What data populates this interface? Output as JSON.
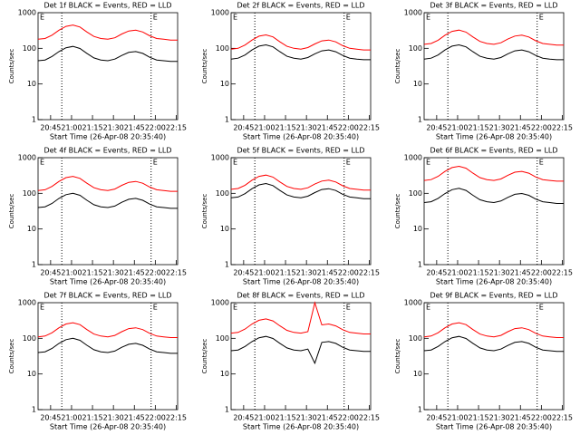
{
  "chart_data": [
    {
      "type": "line",
      "title": "Det 1f BLACK = Events, RED = LLD",
      "xlabel": "Start Time (26-Apr-08 20:35:40)",
      "ylabel": "Counts/sec",
      "log_y": true,
      "annotations": [
        "E",
        "E"
      ],
      "vlines": [
        53,
        117
      ],
      "xlim": [
        36,
        136
      ],
      "ylim": [
        1,
        1000
      ],
      "yticks": [
        1,
        10,
        100,
        1000
      ],
      "xticks": [
        {
          "value": 45,
          "label": "20:45"
        },
        {
          "value": 60,
          "label": "21:00"
        },
        {
          "value": 75,
          "label": "21:15"
        },
        {
          "value": 90,
          "label": "21:30"
        },
        {
          "value": 105,
          "label": "21:45"
        },
        {
          "value": 120,
          "label": "22:00"
        },
        {
          "value": 135,
          "label": "22:15"
        }
      ],
      "x": [
        36,
        41,
        46,
        51,
        56,
        61,
        66,
        71,
        76,
        81,
        86,
        91,
        96,
        101,
        106,
        111,
        116,
        121,
        126,
        131,
        136
      ],
      "series": [
        {
          "color": "#000000",
          "values": [
            45,
            47,
            59,
            81,
            104,
            113,
            99,
            72,
            54,
            47,
            45,
            50,
            63,
            77,
            81,
            72,
            56,
            47,
            45,
            43,
            43
          ]
        },
        {
          "color": "#ff0000",
          "values": [
            180,
            189,
            234,
            324,
            414,
            450,
            396,
            288,
            216,
            189,
            180,
            198,
            252,
            306,
            324,
            288,
            225,
            189,
            180,
            171,
            171
          ]
        }
      ]
    },
    {
      "type": "line",
      "title": "Det 2f BLACK = Events, RED = LLD",
      "xlabel": "Start Time (26-Apr-08 20:35:40)",
      "ylabel": "Counts/sec",
      "log_y": true,
      "annotations": [
        "E",
        "E"
      ],
      "vlines": [
        53,
        117
      ],
      "xlim": [
        36,
        136
      ],
      "ylim": [
        1,
        1000
      ],
      "yticks": [
        1,
        10,
        100,
        1000
      ],
      "xticks": [
        {
          "value": 45,
          "label": "20:45"
        },
        {
          "value": 60,
          "label": "21:00"
        },
        {
          "value": 75,
          "label": "21:15"
        },
        {
          "value": 90,
          "label": "21:30"
        },
        {
          "value": 105,
          "label": "21:45"
        },
        {
          "value": 120,
          "label": "22:00"
        },
        {
          "value": 135,
          "label": "22:15"
        }
      ],
      "x": [
        36,
        41,
        46,
        51,
        56,
        61,
        66,
        71,
        76,
        81,
        86,
        91,
        96,
        101,
        106,
        111,
        116,
        121,
        126,
        131,
        136
      ],
      "series": [
        {
          "color": "#000000",
          "values": [
            50,
            53,
            65,
            90,
            115,
            125,
            110,
            80,
            60,
            53,
            50,
            55,
            70,
            85,
            90,
            80,
            63,
            53,
            50,
            48,
            48
          ]
        },
        {
          "color": "#ff0000",
          "values": [
            95,
            100,
            124,
            171,
            219,
            238,
            209,
            152,
            114,
            100,
            95,
            105,
            133,
            162,
            171,
            152,
            119,
            100,
            95,
            90,
            90
          ]
        }
      ]
    },
    {
      "type": "line",
      "title": "Det 3f BLACK = Events, RED = LLD",
      "xlabel": "Start Time (26-Apr-08 20:35:40)",
      "ylabel": "Counts/sec",
      "log_y": true,
      "annotations": [
        "E",
        "E"
      ],
      "vlines": [
        53,
        117
      ],
      "xlim": [
        36,
        136
      ],
      "ylim": [
        1,
        1000
      ],
      "yticks": [
        1,
        10,
        100,
        1000
      ],
      "xticks": [
        {
          "value": 45,
          "label": "20:45"
        },
        {
          "value": 60,
          "label": "21:00"
        },
        {
          "value": 75,
          "label": "21:15"
        },
        {
          "value": 90,
          "label": "21:30"
        },
        {
          "value": 105,
          "label": "21:45"
        },
        {
          "value": 120,
          "label": "22:00"
        },
        {
          "value": 135,
          "label": "22:15"
        }
      ],
      "x": [
        36,
        41,
        46,
        51,
        56,
        61,
        66,
        71,
        76,
        81,
        86,
        91,
        96,
        101,
        106,
        111,
        116,
        121,
        126,
        131,
        136
      ],
      "series": [
        {
          "color": "#000000",
          "values": [
            50,
            53,
            65,
            90,
            115,
            125,
            110,
            80,
            60,
            53,
            50,
            55,
            70,
            85,
            90,
            80,
            63,
            53,
            50,
            48,
            48
          ]
        },
        {
          "color": "#ff0000",
          "values": [
            130,
            137,
            169,
            234,
            299,
            325,
            286,
            208,
            156,
            137,
            130,
            143,
            182,
            221,
            234,
            208,
            163,
            137,
            130,
            124,
            124
          ]
        }
      ]
    },
    {
      "type": "line",
      "title": "Det 4f BLACK = Events, RED = LLD",
      "xlabel": "Start Time (26-Apr-08 20:35:40)",
      "ylabel": "Counts/sec",
      "log_y": true,
      "annotations": [
        "E",
        "E"
      ],
      "vlines": [
        53,
        117
      ],
      "xlim": [
        36,
        136
      ],
      "ylim": [
        1,
        1000
      ],
      "yticks": [
        1,
        10,
        100,
        1000
      ],
      "xticks": [
        {
          "value": 45,
          "label": "20:45"
        },
        {
          "value": 60,
          "label": "21:00"
        },
        {
          "value": 75,
          "label": "21:15"
        },
        {
          "value": 90,
          "label": "21:30"
        },
        {
          "value": 105,
          "label": "21:45"
        },
        {
          "value": 120,
          "label": "22:00"
        },
        {
          "value": 135,
          "label": "22:15"
        }
      ],
      "x": [
        36,
        41,
        46,
        51,
        56,
        61,
        66,
        71,
        76,
        81,
        86,
        91,
        96,
        101,
        106,
        111,
        116,
        121,
        126,
        131,
        136
      ],
      "series": [
        {
          "color": "#000000",
          "values": [
            40,
            42,
            52,
            72,
            92,
            100,
            88,
            64,
            48,
            42,
            40,
            44,
            56,
            68,
            72,
            64,
            50,
            42,
            40,
            38,
            38
          ]
        },
        {
          "color": "#ff0000",
          "values": [
            120,
            126,
            156,
            216,
            276,
            300,
            264,
            192,
            144,
            126,
            120,
            132,
            168,
            204,
            216,
            192,
            150,
            126,
            120,
            114,
            114
          ]
        }
      ]
    },
    {
      "type": "line",
      "title": "Det 5f BLACK = Events, RED = LLD",
      "xlabel": "Start Time (26-Apr-08 20:35:40)",
      "ylabel": "Counts/sec",
      "log_y": true,
      "annotations": [
        "E",
        "E"
      ],
      "vlines": [
        53,
        117
      ],
      "xlim": [
        36,
        136
      ],
      "ylim": [
        1,
        1000
      ],
      "yticks": [
        1,
        10,
        100,
        1000
      ],
      "xticks": [
        {
          "value": 45,
          "label": "20:45"
        },
        {
          "value": 60,
          "label": "21:00"
        },
        {
          "value": 75,
          "label": "21:15"
        },
        {
          "value": 90,
          "label": "21:30"
        },
        {
          "value": 105,
          "label": "21:45"
        },
        {
          "value": 120,
          "label": "22:00"
        },
        {
          "value": 135,
          "label": "22:15"
        }
      ],
      "x": [
        36,
        41,
        46,
        51,
        56,
        61,
        66,
        71,
        76,
        81,
        86,
        91,
        96,
        101,
        106,
        111,
        116,
        121,
        126,
        131,
        136
      ],
      "series": [
        {
          "color": "#000000",
          "values": [
            75,
            79,
            98,
            135,
            173,
            188,
            165,
            120,
            90,
            79,
            75,
            83,
            105,
            128,
            135,
            120,
            94,
            79,
            75,
            71,
            71
          ]
        },
        {
          "color": "#ff0000",
          "values": [
            130,
            137,
            169,
            234,
            299,
            325,
            286,
            208,
            156,
            137,
            130,
            143,
            182,
            221,
            234,
            208,
            163,
            137,
            130,
            124,
            124
          ]
        }
      ]
    },
    {
      "type": "line",
      "title": "Det 6f BLACK = Events, RED = LLD",
      "xlabel": "Start Time (26-Apr-08 20:35:40)",
      "ylabel": "Counts/sec",
      "log_y": true,
      "annotations": [
        "E",
        "E"
      ],
      "vlines": [
        53,
        117
      ],
      "xlim": [
        36,
        136
      ],
      "ylim": [
        1,
        1000
      ],
      "yticks": [
        1,
        10,
        100,
        1000
      ],
      "xticks": [
        {
          "value": 45,
          "label": "20:45"
        },
        {
          "value": 60,
          "label": "21:00"
        },
        {
          "value": 75,
          "label": "21:15"
        },
        {
          "value": 90,
          "label": "21:30"
        },
        {
          "value": 105,
          "label": "21:45"
        },
        {
          "value": 120,
          "label": "22:00"
        },
        {
          "value": 135,
          "label": "22:15"
        }
      ],
      "x": [
        36,
        41,
        46,
        51,
        56,
        61,
        66,
        71,
        76,
        81,
        86,
        91,
        96,
        101,
        106,
        111,
        116,
        121,
        126,
        131,
        136
      ],
      "series": [
        {
          "color": "#000000",
          "values": [
            55,
            58,
            72,
            99,
            127,
            138,
            121,
            88,
            66,
            58,
            55,
            61,
            77,
            94,
            99,
            88,
            69,
            58,
            55,
            52,
            52
          ]
        },
        {
          "color": "#ff0000",
          "values": [
            230,
            242,
            299,
            414,
            529,
            575,
            506,
            368,
            276,
            242,
            230,
            253,
            322,
            391,
            414,
            368,
            288,
            242,
            230,
            219,
            219
          ]
        }
      ]
    },
    {
      "type": "line",
      "title": "Det 7f BLACK = Events, RED = LLD",
      "xlabel": "Start Time (26-Apr-08 20:35:40)",
      "ylabel": "Counts/sec",
      "log_y": true,
      "annotations": [
        "E",
        "E"
      ],
      "vlines": [
        53,
        117
      ],
      "xlim": [
        36,
        136
      ],
      "ylim": [
        1,
        1000
      ],
      "yticks": [
        1,
        10,
        100,
        1000
      ],
      "xticks": [
        {
          "value": 45,
          "label": "20:45"
        },
        {
          "value": 60,
          "label": "21:00"
        },
        {
          "value": 75,
          "label": "21:15"
        },
        {
          "value": 90,
          "label": "21:30"
        },
        {
          "value": 105,
          "label": "21:45"
        },
        {
          "value": 120,
          "label": "22:00"
        },
        {
          "value": 135,
          "label": "22:15"
        }
      ],
      "x": [
        36,
        41,
        46,
        51,
        56,
        61,
        66,
        71,
        76,
        81,
        86,
        91,
        96,
        101,
        106,
        111,
        116,
        121,
        126,
        131,
        136
      ],
      "series": [
        {
          "color": "#000000",
          "values": [
            40,
            42,
            52,
            72,
            92,
            100,
            88,
            64,
            48,
            42,
            40,
            44,
            56,
            68,
            72,
            64,
            50,
            42,
            40,
            38,
            38
          ]
        },
        {
          "color": "#ff0000",
          "values": [
            110,
            116,
            143,
            198,
            253,
            275,
            242,
            176,
            132,
            116,
            110,
            121,
            154,
            187,
            198,
            176,
            138,
            116,
            110,
            105,
            105
          ]
        }
      ]
    },
    {
      "type": "line",
      "title": "Det 8f BLACK = Events, RED = LLD",
      "xlabel": "Start Time (26-Apr-08 20:35:40)",
      "ylabel": "Counts/sec",
      "log_y": true,
      "annotations": [
        "E",
        "E"
      ],
      "vlines": [
        53,
        117
      ],
      "xlim": [
        36,
        136
      ],
      "ylim": [
        1,
        1000
      ],
      "yticks": [
        1,
        10,
        100,
        1000
      ],
      "xticks": [
        {
          "value": 45,
          "label": "20:45"
        },
        {
          "value": 60,
          "label": "21:00"
        },
        {
          "value": 75,
          "label": "21:15"
        },
        {
          "value": 90,
          "label": "21:30"
        },
        {
          "value": 105,
          "label": "21:45"
        },
        {
          "value": 120,
          "label": "22:00"
        },
        {
          "value": 135,
          "label": "22:15"
        }
      ],
      "x": [
        36,
        41,
        46,
        51,
        56,
        61,
        66,
        71,
        76,
        81,
        86,
        91,
        96,
        101,
        106,
        111,
        116,
        121,
        126,
        131,
        136
      ],
      "series": [
        {
          "color": "#000000",
          "values": [
            45,
            47,
            59,
            81,
            104,
            113,
            99,
            72,
            54,
            47,
            45,
            50,
            20,
            77,
            81,
            72,
            56,
            47,
            45,
            43,
            43
          ]
        },
        {
          "color": "#ff0000",
          "values": [
            140,
            147,
            182,
            252,
            322,
            350,
            308,
            224,
            168,
            147,
            140,
            154,
            1000,
            238,
            252,
            224,
            175,
            147,
            140,
            133,
            133
          ]
        }
      ]
    },
    {
      "type": "line",
      "title": "Det 9f BLACK = Events, RED = LLD",
      "xlabel": "Start Time (26-Apr-08 20:35:40)",
      "ylabel": "Counts/sec",
      "log_y": true,
      "annotations": [
        "E",
        "E"
      ],
      "vlines": [
        53,
        117
      ],
      "xlim": [
        36,
        136
      ],
      "ylim": [
        1,
        1000
      ],
      "yticks": [
        1,
        10,
        100,
        1000
      ],
      "xticks": [
        {
          "value": 45,
          "label": "20:45"
        },
        {
          "value": 60,
          "label": "21:00"
        },
        {
          "value": 75,
          "label": "21:15"
        },
        {
          "value": 90,
          "label": "21:30"
        },
        {
          "value": 105,
          "label": "21:45"
        },
        {
          "value": 120,
          "label": "22:00"
        },
        {
          "value": 135,
          "label": "22:15"
        }
      ],
      "x": [
        36,
        41,
        46,
        51,
        56,
        61,
        66,
        71,
        76,
        81,
        86,
        91,
        96,
        101,
        106,
        111,
        116,
        121,
        126,
        131,
        136
      ],
      "series": [
        {
          "color": "#000000",
          "values": [
            45,
            47,
            59,
            81,
            104,
            113,
            99,
            72,
            54,
            47,
            45,
            50,
            63,
            77,
            81,
            72,
            56,
            47,
            45,
            43,
            43
          ]
        },
        {
          "color": "#ff0000",
          "values": [
            110,
            116,
            143,
            198,
            253,
            275,
            242,
            176,
            132,
            116,
            110,
            121,
            154,
            187,
            198,
            176,
            138,
            116,
            110,
            105,
            105
          ]
        }
      ]
    }
  ]
}
